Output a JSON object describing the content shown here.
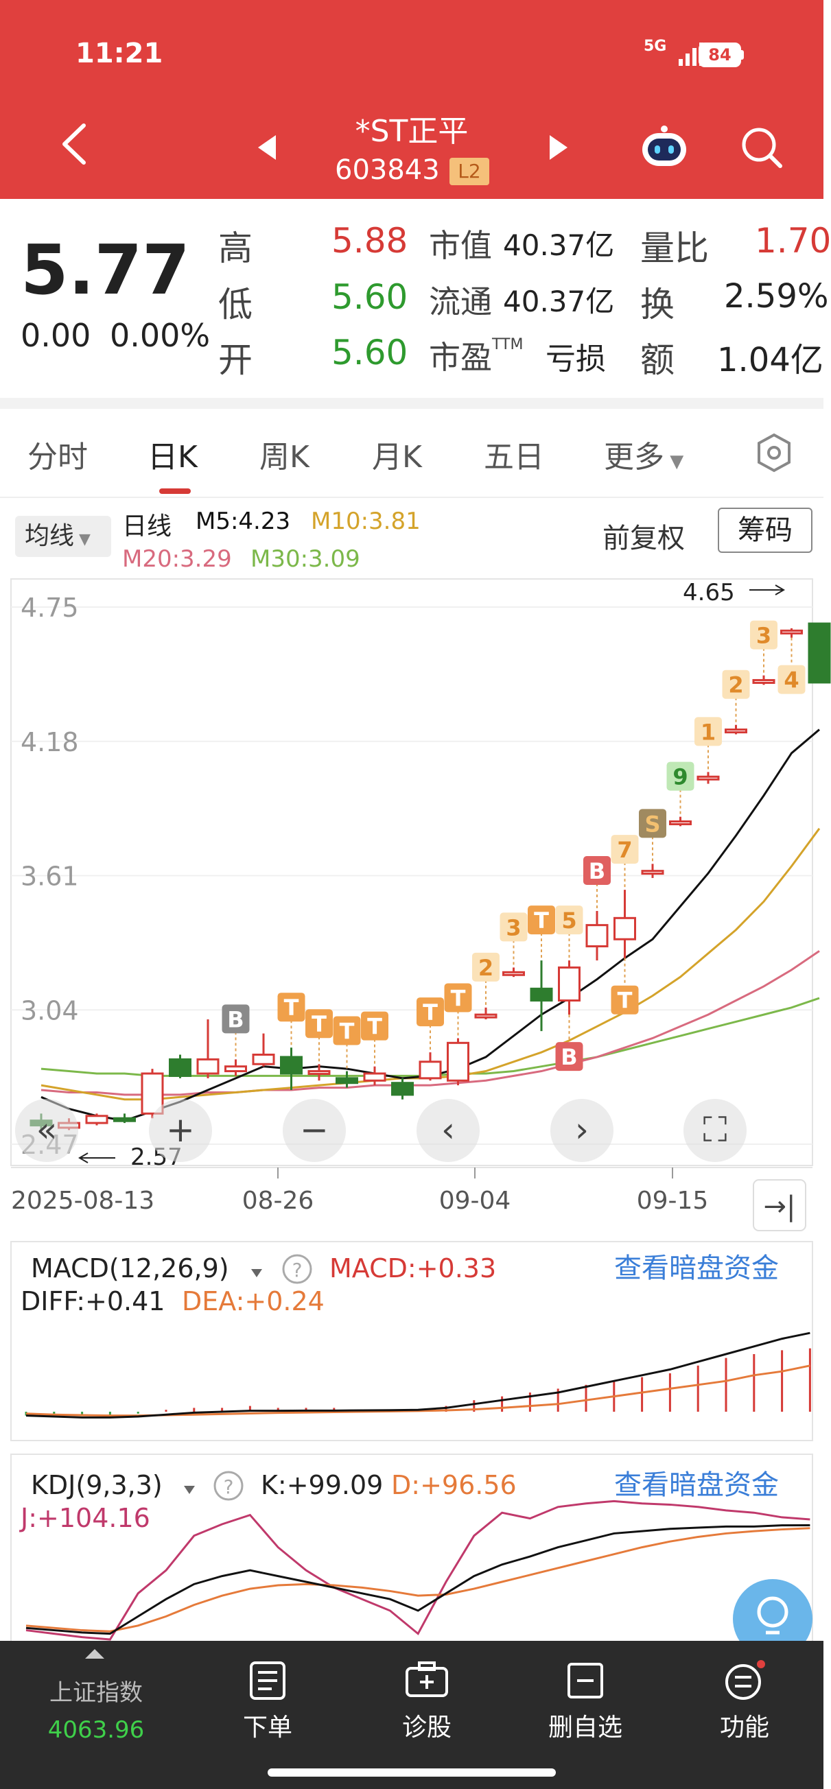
{
  "status": {
    "time": "11:21",
    "network": "5G",
    "battery": "84"
  },
  "header": {
    "title": "*ST正平",
    "code": "603843",
    "level_badge": "L2"
  },
  "quote": {
    "price": "5.77",
    "change": "0.00",
    "change_pct": "0.00%",
    "high_label": "高",
    "high": "5.88",
    "low_label": "低",
    "low": "5.60",
    "open_label": "开",
    "open": "5.60",
    "mcap_label": "市值",
    "mcap": "40.37亿",
    "float_label": "流通",
    "float": "40.37亿",
    "pe_label": "市盈",
    "pe_sup": "TTM",
    "pe": "亏损",
    "vr_label": "量比",
    "vr": "1.70",
    "turnover_label": "换",
    "turnover": "2.59%",
    "amount_label": "额",
    "amount": "1.04亿"
  },
  "tabs": [
    "分时",
    "日K",
    "周K",
    "月K",
    "五日",
    "更多"
  ],
  "active_tab": "日K",
  "ma_bar": {
    "button": "均线",
    "period": "日线",
    "m5": "M5:4.23",
    "m10": "M10:3.81",
    "m20": "M20:3.29",
    "m30": "M30:3.09",
    "adjust": "前复权",
    "chips": "筹码"
  },
  "colors": {
    "up": "#d63a36",
    "down": "#2e7d2e",
    "m5": "#111111",
    "m10": "#d4a32a",
    "m20": "#d86a7e",
    "m30": "#7cb84a",
    "macd_diff": "#111111",
    "macd_dea": "#e57a3a",
    "kdj_j": "#c0396b",
    "link": "#3a7ed8"
  },
  "chart_data": {
    "type": "candlestick",
    "ylim": [
      2.47,
      4.75
    ],
    "y_ticks": [
      "4.75",
      "4.18",
      "3.61",
      "3.04",
      "2.47"
    ],
    "x_ticks": [
      "2025-08-13",
      "08-26",
      "09-04",
      "09-15"
    ],
    "max_label": "4.65",
    "min_label": "2.57",
    "candles": [
      {
        "o": 2.57,
        "c": 2.55,
        "h": 2.6,
        "l": 2.53
      },
      {
        "o": 2.54,
        "c": 2.56,
        "h": 2.58,
        "l": 2.53
      },
      {
        "o": 2.56,
        "c": 2.59,
        "h": 2.6,
        "l": 2.55
      },
      {
        "o": 2.58,
        "c": 2.57,
        "h": 2.6,
        "l": 2.56
      },
      {
        "o": 2.6,
        "c": 2.77,
        "h": 2.79,
        "l": 2.58
      },
      {
        "o": 2.83,
        "c": 2.76,
        "h": 2.85,
        "l": 2.75
      },
      {
        "o": 2.77,
        "c": 2.83,
        "h": 3.0,
        "l": 2.75
      },
      {
        "o": 2.78,
        "c": 2.8,
        "h": 2.83,
        "l": 2.76
      },
      {
        "o": 2.81,
        "c": 2.85,
        "h": 2.94,
        "l": 2.8
      },
      {
        "o": 2.84,
        "c": 2.77,
        "h": 2.88,
        "l": 2.7
      },
      {
        "o": 2.77,
        "c": 2.78,
        "h": 2.81,
        "l": 2.74
      },
      {
        "o": 2.75,
        "c": 2.73,
        "h": 2.78,
        "l": 2.71
      },
      {
        "o": 2.74,
        "c": 2.77,
        "h": 2.8,
        "l": 2.72
      },
      {
        "o": 2.73,
        "c": 2.68,
        "h": 2.75,
        "l": 2.66
      },
      {
        "o": 2.75,
        "c": 2.82,
        "h": 2.86,
        "l": 2.74
      },
      {
        "o": 2.74,
        "c": 2.9,
        "h": 2.92,
        "l": 2.72
      },
      {
        "o": 3.02,
        "c": 3.02,
        "h": 3.05,
        "l": 3.0
      },
      {
        "o": 3.2,
        "c": 3.2,
        "h": 3.22,
        "l": 3.18
      },
      {
        "o": 3.13,
        "c": 3.08,
        "h": 3.25,
        "l": 2.95
      },
      {
        "o": 3.08,
        "c": 3.22,
        "h": 3.25,
        "l": 3.02
      },
      {
        "o": 3.31,
        "c": 3.4,
        "h": 3.46,
        "l": 3.25
      },
      {
        "o": 3.34,
        "c": 3.43,
        "h": 3.55,
        "l": 3.26
      },
      {
        "o": 3.63,
        "c": 3.63,
        "h": 3.66,
        "l": 3.6
      },
      {
        "o": 3.84,
        "c": 3.84,
        "h": 3.86,
        "l": 3.82
      },
      {
        "o": 4.03,
        "c": 4.03,
        "h": 4.05,
        "l": 4.0
      },
      {
        "o": 4.23,
        "c": 4.23,
        "h": 4.25,
        "l": 4.21
      },
      {
        "o": 4.44,
        "c": 4.44,
        "h": 4.46,
        "l": 4.42
      },
      {
        "o": 4.65,
        "c": 4.65,
        "h": 4.66,
        "l": 4.62
      },
      {
        "o": 4.68,
        "c": 4.43,
        "h": 4.68,
        "l": 4.43
      }
    ],
    "m5": [
      2.67,
      2.62,
      2.59,
      2.57,
      2.61,
      2.65,
      2.7,
      2.75,
      2.8,
      2.79,
      2.8,
      2.79,
      2.77,
      2.75,
      2.76,
      2.79,
      2.84,
      2.93,
      3.02,
      3.09,
      3.17,
      3.26,
      3.34,
      3.48,
      3.62,
      3.78,
      3.95,
      4.13,
      4.23
    ],
    "m10": [
      2.72,
      2.7,
      2.68,
      2.66,
      2.66,
      2.67,
      2.68,
      2.69,
      2.7,
      2.71,
      2.72,
      2.73,
      2.74,
      2.75,
      2.75,
      2.76,
      2.78,
      2.82,
      2.86,
      2.91,
      2.97,
      3.03,
      3.1,
      3.18,
      3.28,
      3.38,
      3.5,
      3.65,
      3.81
    ],
    "m20": [
      2.7,
      2.69,
      2.69,
      2.68,
      2.68,
      2.68,
      2.69,
      2.69,
      2.7,
      2.7,
      2.71,
      2.71,
      2.72,
      2.72,
      2.72,
      2.73,
      2.74,
      2.76,
      2.78,
      2.81,
      2.84,
      2.88,
      2.92,
      2.97,
      3.02,
      3.08,
      3.14,
      3.21,
      3.29
    ],
    "m30": [
      2.79,
      2.78,
      2.77,
      2.77,
      2.76,
      2.76,
      2.76,
      2.76,
      2.76,
      2.76,
      2.76,
      2.76,
      2.76,
      2.76,
      2.76,
      2.77,
      2.77,
      2.78,
      2.8,
      2.82,
      2.84,
      2.87,
      2.9,
      2.93,
      2.96,
      2.99,
      3.02,
      3.05,
      3.09
    ],
    "markers": [
      {
        "i": 7,
        "t": "B",
        "kind": "buy-gray",
        "pos": "above"
      },
      {
        "i": 9,
        "t": "T",
        "kind": "orange",
        "pos": "above"
      },
      {
        "i": 10,
        "t": "T",
        "kind": "orange",
        "pos": "above"
      },
      {
        "i": 11,
        "t": "T",
        "kind": "orange",
        "pos": "above"
      },
      {
        "i": 12,
        "t": "T",
        "kind": "orange",
        "pos": "above"
      },
      {
        "i": 14,
        "t": "T",
        "kind": "orange",
        "pos": "above"
      },
      {
        "i": 15,
        "t": "T",
        "kind": "orange",
        "pos": "above"
      },
      {
        "i": 16,
        "t": "2",
        "kind": "light",
        "pos": "above"
      },
      {
        "i": 17,
        "t": "3",
        "kind": "light",
        "pos": "above"
      },
      {
        "i": 18,
        "t": "T",
        "kind": "orange",
        "pos": "above"
      },
      {
        "i": 19,
        "t": "5",
        "kind": "light",
        "pos": "above"
      },
      {
        "i": 19,
        "t": "B",
        "kind": "buy-red",
        "pos": "below"
      },
      {
        "i": 20,
        "t": "B",
        "kind": "buy-red",
        "pos": "above"
      },
      {
        "i": 21,
        "t": "7",
        "kind": "light",
        "pos": "above"
      },
      {
        "i": 21,
        "t": "T",
        "kind": "orange",
        "pos": "below"
      },
      {
        "i": 22,
        "t": "S",
        "kind": "sell",
        "pos": "above"
      },
      {
        "i": 23,
        "t": "9",
        "kind": "green",
        "pos": "above"
      },
      {
        "i": 24,
        "t": "1",
        "kind": "light",
        "pos": "above"
      },
      {
        "i": 25,
        "t": "2",
        "kind": "light",
        "pos": "above"
      },
      {
        "i": 26,
        "t": "3",
        "kind": "light",
        "pos": "above"
      },
      {
        "i": 27,
        "t": "4",
        "kind": "light",
        "pos": "below"
      }
    ],
    "macd": {
      "title": "MACD(12,26,9)",
      "macd": "MACD:+0.33",
      "diff": "DIFF:+0.41",
      "dea": "DEA:+0.24",
      "link": "查看暗盘资金",
      "diff_vals": [
        -0.02,
        -0.025,
        -0.03,
        -0.03,
        -0.025,
        -0.015,
        -0.005,
        0.0,
        0.005,
        0.005,
        0.006,
        0.006,
        0.007,
        0.008,
        0.01,
        0.02,
        0.04,
        0.06,
        0.08,
        0.1,
        0.13,
        0.16,
        0.19,
        0.22,
        0.26,
        0.3,
        0.34,
        0.38,
        0.41
      ],
      "dea_vals": [
        -0.01,
        -0.015,
        -0.018,
        -0.02,
        -0.02,
        -0.018,
        -0.015,
        -0.012,
        -0.009,
        -0.006,
        -0.004,
        -0.002,
        0.0,
        0.002,
        0.004,
        0.007,
        0.012,
        0.02,
        0.03,
        0.04,
        0.06,
        0.08,
        0.1,
        0.12,
        0.14,
        0.16,
        0.19,
        0.21,
        0.24
      ],
      "hist": [
        -0.02,
        -0.02,
        -0.02,
        -0.02,
        -0.01,
        0.01,
        0.02,
        0.02,
        0.03,
        0.02,
        0.02,
        0.02,
        0.01,
        0.01,
        0.01,
        0.03,
        0.06,
        0.08,
        0.1,
        0.12,
        0.14,
        0.16,
        0.18,
        0.2,
        0.24,
        0.28,
        0.3,
        0.32,
        0.33
      ]
    },
    "kdj": {
      "title": "KDJ(9,3,3)",
      "k": "K:+99.09",
      "d": "D:+96.56",
      "j": "J:+104.16",
      "link": "查看暗盘资金",
      "k_vals": [
        10,
        8,
        6,
        5,
        20,
        35,
        48,
        55,
        60,
        55,
        50,
        45,
        40,
        35,
        25,
        40,
        55,
        65,
        72,
        80,
        86,
        92,
        94,
        96,
        97,
        98,
        98,
        99,
        99.09
      ],
      "d_vals": [
        12,
        10,
        8,
        7,
        12,
        20,
        30,
        38,
        44,
        47,
        48,
        47,
        45,
        42,
        38,
        39,
        44,
        50,
        56,
        62,
        68,
        74,
        80,
        85,
        89,
        92,
        94,
        95.5,
        96.56
      ],
      "j_vals": [
        8,
        5,
        2,
        0,
        40,
        60,
        90,
        100,
        108,
        80,
        60,
        45,
        35,
        25,
        5,
        50,
        90,
        110,
        105,
        115,
        118,
        120,
        118,
        117,
        115,
        112,
        110,
        106,
        104.16
      ]
    }
  },
  "chart_controls": [
    "«",
    "+",
    "−",
    "‹",
    "›",
    "⛶",
    "→|"
  ],
  "bottom_nav": {
    "index_name": "上证指数",
    "index_value": "4063.96",
    "items": [
      "下单",
      "诊股",
      "删自选",
      "功能"
    ]
  }
}
